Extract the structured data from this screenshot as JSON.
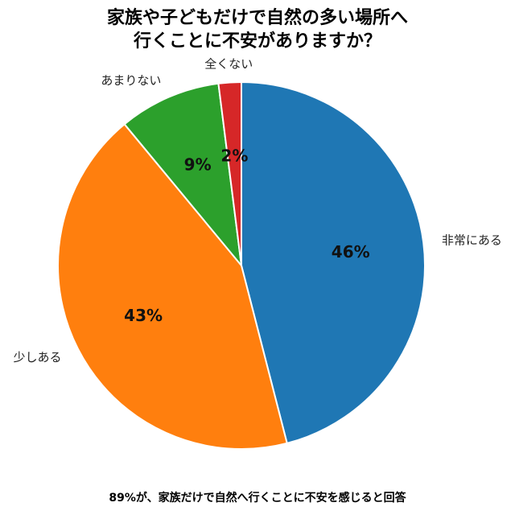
{
  "title_lines": [
    "家族や子どもだけで自然の多い場所へ",
    "行くことに不安がありますか？"
  ],
  "caption": "89%が、家族だけで自然へ行くことに不安を感じると回答",
  "chart_data": {
    "type": "pie",
    "title": "家族や子どもだけで自然の多い場所へ行くことに不安がありますか？",
    "start_angle_deg": 0,
    "direction": "clockwise",
    "categories": [
      "非常にある",
      "少しある",
      "あまりない",
      "全くない"
    ],
    "values": [
      46,
      43,
      9,
      2
    ],
    "value_labels": [
      "46%",
      "43%",
      "9%",
      "2%"
    ],
    "colors": [
      "#1f77b4",
      "#ff7f0e",
      "#2ca02c",
      "#d62728"
    ],
    "legend": "none"
  }
}
